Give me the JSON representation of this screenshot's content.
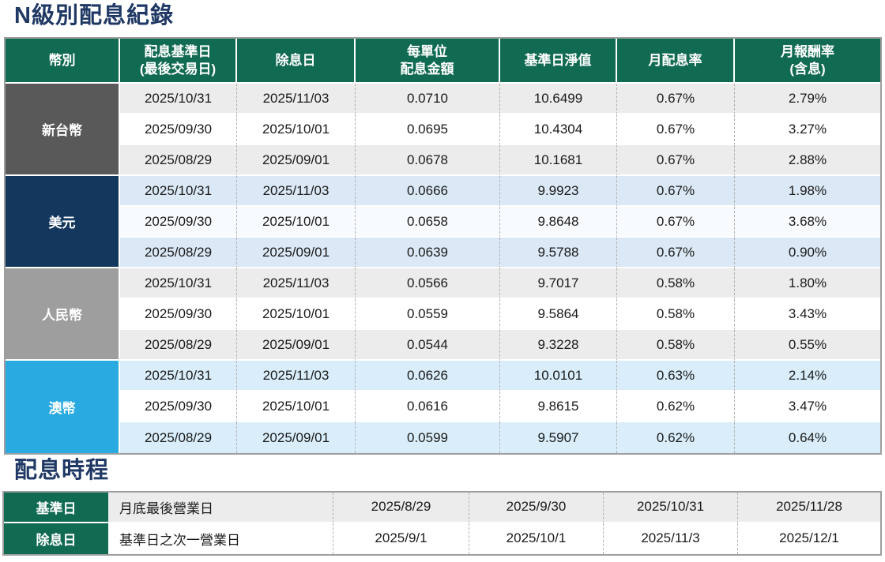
{
  "colors": {
    "title_text": "#1f3864",
    "header_bg": "#116a52",
    "header_text": "#ffffff",
    "outer_border": "#9e9e9e"
  },
  "section_dividend_record": {
    "title": "N級別配息紀錄",
    "columns": [
      "幣別",
      "配息基準日\n(最後交易日)",
      "除息日",
      "每單位\n配息金額",
      "基準日淨值",
      "月配息率",
      "月報酬率\n(含息)"
    ],
    "groups": [
      {
        "currency": "新台幣",
        "label_bg": "#595959",
        "stripe_bg": "#ececec",
        "mid_bg": "#ffffff",
        "rows": [
          {
            "record_date": "2025/10/31",
            "ex_date": "2025/11/03",
            "dividend": "0.0710",
            "nav": "10.6499",
            "monthly_rate": "0.67%",
            "monthly_return": "2.79%"
          },
          {
            "record_date": "2025/09/30",
            "ex_date": "2025/10/01",
            "dividend": "0.0695",
            "nav": "10.4304",
            "monthly_rate": "0.67%",
            "monthly_return": "3.27%"
          },
          {
            "record_date": "2025/08/29",
            "ex_date": "2025/09/01",
            "dividend": "0.0678",
            "nav": "10.1681",
            "monthly_rate": "0.67%",
            "monthly_return": "2.88%"
          }
        ]
      },
      {
        "currency": "美元",
        "label_bg": "#14375e",
        "stripe_bg": "#dbe8f5",
        "mid_bg": "#f8fbfe",
        "rows": [
          {
            "record_date": "2025/10/31",
            "ex_date": "2025/11/03",
            "dividend": "0.0666",
            "nav": "9.9923",
            "monthly_rate": "0.67%",
            "monthly_return": "1.98%"
          },
          {
            "record_date": "2025/09/30",
            "ex_date": "2025/10/01",
            "dividend": "0.0658",
            "nav": "9.8648",
            "monthly_rate": "0.67%",
            "monthly_return": "3.68%"
          },
          {
            "record_date": "2025/08/29",
            "ex_date": "2025/09/01",
            "dividend": "0.0639",
            "nav": "9.5788",
            "monthly_rate": "0.67%",
            "monthly_return": "0.90%"
          }
        ]
      },
      {
        "currency": "人民幣",
        "label_bg": "#9e9e9e",
        "stripe_bg": "#ececec",
        "mid_bg": "#ffffff",
        "rows": [
          {
            "record_date": "2025/10/31",
            "ex_date": "2025/11/03",
            "dividend": "0.0566",
            "nav": "9.7017",
            "monthly_rate": "0.58%",
            "monthly_return": "1.80%"
          },
          {
            "record_date": "2025/09/30",
            "ex_date": "2025/10/01",
            "dividend": "0.0559",
            "nav": "9.5864",
            "monthly_rate": "0.58%",
            "monthly_return": "3.43%"
          },
          {
            "record_date": "2025/08/29",
            "ex_date": "2025/09/01",
            "dividend": "0.0544",
            "nav": "9.3228",
            "monthly_rate": "0.58%",
            "monthly_return": "0.55%"
          }
        ]
      },
      {
        "currency": "澳幣",
        "label_bg": "#29aae1",
        "stripe_bg": "#d9eefa",
        "mid_bg": "#ffffff",
        "rows": [
          {
            "record_date": "2025/10/31",
            "ex_date": "2025/11/03",
            "dividend": "0.0626",
            "nav": "10.0101",
            "monthly_rate": "0.63%",
            "monthly_return": "2.14%"
          },
          {
            "record_date": "2025/09/30",
            "ex_date": "2025/10/01",
            "dividend": "0.0616",
            "nav": "9.8615",
            "monthly_rate": "0.62%",
            "monthly_return": "3.47%"
          },
          {
            "record_date": "2025/08/29",
            "ex_date": "2025/09/01",
            "dividend": "0.0599",
            "nav": "9.5907",
            "monthly_rate": "0.62%",
            "monthly_return": "0.64%"
          }
        ]
      }
    ]
  },
  "section_schedule": {
    "title": "配息時程",
    "rows": [
      {
        "label": "基準日",
        "description": "月底最後營業日",
        "bg": "#ececec",
        "dates": [
          "2025/8/29",
          "2025/9/30",
          "2025/10/31",
          "2025/11/28"
        ]
      },
      {
        "label": "除息日",
        "description": "基準日之次一營業日",
        "bg": "#ffffff",
        "dates": [
          "2025/9/1",
          "2025/10/1",
          "2025/11/3",
          "2025/12/1"
        ]
      }
    ]
  }
}
